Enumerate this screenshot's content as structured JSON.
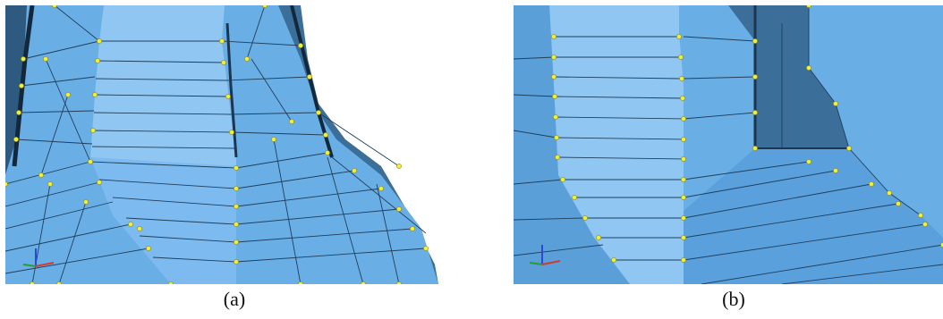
{
  "figure": {
    "panels": [
      {
        "id": "a",
        "caption": "(a)"
      },
      {
        "id": "b",
        "caption": "(b)"
      }
    ],
    "colors": {
      "background": "#ffffff",
      "mesh_face": "#6aaee6",
      "mesh_face_light": "#8fc6f2",
      "mesh_face_dark": "#3b6f9a",
      "mesh_edge": "#1f3f5c",
      "node": "#f2ee3a",
      "axis_x": "#d23a2a",
      "axis_y": "#2a9a3a",
      "axis_z": "#2a4ad2"
    },
    "icons": [
      "axis-triad-icon"
    ]
  }
}
